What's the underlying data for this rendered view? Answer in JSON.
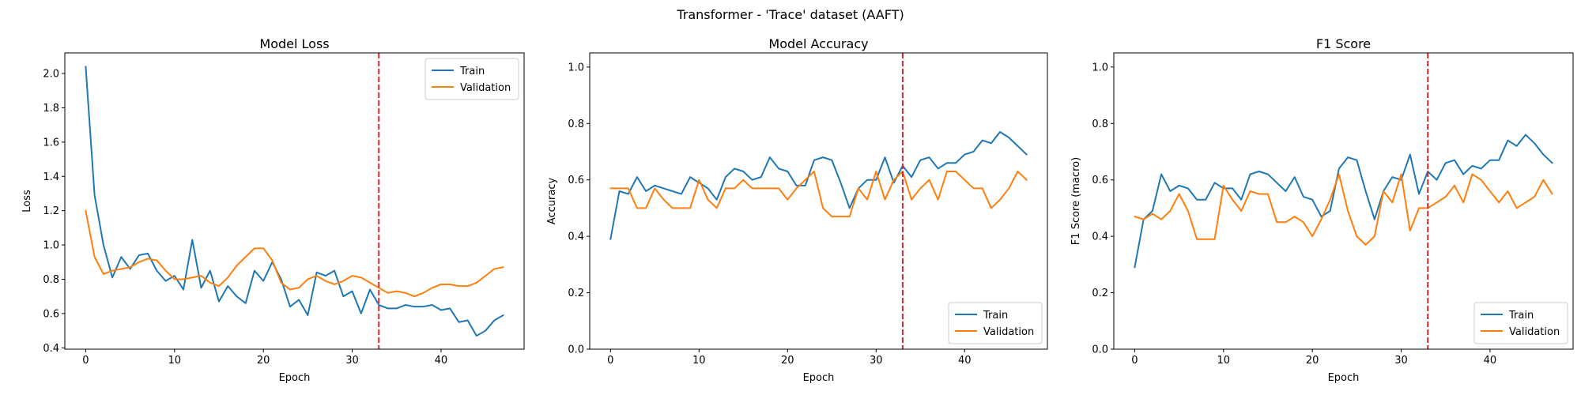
{
  "figure": {
    "suptitle": "Transformer - 'Trace' dataset (AAFT)"
  },
  "colors": {
    "train": "#1f77b4",
    "validation": "#ff7f0e",
    "marker": "#d62728",
    "axis": "#000000",
    "legend_border": "#cccccc"
  },
  "chart_data": [
    {
      "type": "line",
      "title": "Model Loss",
      "xlabel": "Epoch",
      "ylabel": "Loss",
      "xlim": [
        -2.35,
        49.35
      ],
      "ylim": [
        0.392,
        2.12
      ],
      "xticks": [
        0,
        10,
        20,
        30,
        40
      ],
      "yticks": [
        0.4,
        0.6,
        0.8,
        1.0,
        1.2,
        1.4,
        1.6,
        1.8,
        2.0
      ],
      "ytick_decimals": 1,
      "legend_position": "top-right",
      "vline": 33,
      "series": [
        {
          "name": "Train",
          "color": "#1f77b4",
          "values": [
            2.04,
            1.29,
            1.0,
            0.81,
            0.93,
            0.86,
            0.94,
            0.95,
            0.85,
            0.79,
            0.82,
            0.74,
            1.03,
            0.75,
            0.85,
            0.67,
            0.76,
            0.7,
            0.66,
            0.85,
            0.79,
            0.9,
            0.8,
            0.64,
            0.68,
            0.59,
            0.84,
            0.82,
            0.85,
            0.7,
            0.73,
            0.6,
            0.74,
            0.65,
            0.63,
            0.63,
            0.65,
            0.64,
            0.64,
            0.65,
            0.62,
            0.63,
            0.55,
            0.56,
            0.47,
            0.5,
            0.56,
            0.59
          ]
        },
        {
          "name": "Validation",
          "color": "#ff7f0e",
          "values": [
            1.2,
            0.93,
            0.83,
            0.85,
            0.86,
            0.87,
            0.9,
            0.92,
            0.91,
            0.85,
            0.8,
            0.8,
            0.81,
            0.82,
            0.78,
            0.76,
            0.81,
            0.88,
            0.93,
            0.98,
            0.98,
            0.91,
            0.78,
            0.74,
            0.75,
            0.8,
            0.82,
            0.79,
            0.77,
            0.79,
            0.82,
            0.81,
            0.78,
            0.75,
            0.72,
            0.73,
            0.72,
            0.7,
            0.72,
            0.75,
            0.77,
            0.77,
            0.76,
            0.76,
            0.78,
            0.82,
            0.86,
            0.87
          ]
        }
      ]
    },
    {
      "type": "line",
      "title": "Model Accuracy",
      "xlabel": "Epoch",
      "ylabel": "Accuracy",
      "xlim": [
        -2.35,
        49.35
      ],
      "ylim": [
        0,
        1.05
      ],
      "xticks": [
        0,
        10,
        20,
        30,
        40
      ],
      "yticks": [
        0.0,
        0.2,
        0.4,
        0.6,
        0.8,
        1.0
      ],
      "ytick_decimals": 1,
      "legend_position": "bottom-right",
      "vline": 33,
      "series": [
        {
          "name": "Train",
          "color": "#1f77b4",
          "values": [
            0.39,
            0.56,
            0.55,
            0.61,
            0.56,
            0.58,
            0.57,
            0.56,
            0.55,
            0.61,
            0.59,
            0.57,
            0.53,
            0.61,
            0.64,
            0.63,
            0.6,
            0.61,
            0.68,
            0.64,
            0.63,
            0.58,
            0.58,
            0.67,
            0.68,
            0.67,
            0.59,
            0.5,
            0.57,
            0.6,
            0.6,
            0.68,
            0.59,
            0.65,
            0.61,
            0.67,
            0.68,
            0.64,
            0.66,
            0.66,
            0.69,
            0.7,
            0.74,
            0.73,
            0.77,
            0.75,
            0.72,
            0.69
          ]
        },
        {
          "name": "Validation",
          "color": "#ff7f0e",
          "values": [
            0.57,
            0.57,
            0.57,
            0.5,
            0.5,
            0.57,
            0.53,
            0.5,
            0.5,
            0.5,
            0.6,
            0.53,
            0.5,
            0.57,
            0.57,
            0.6,
            0.57,
            0.57,
            0.57,
            0.57,
            0.53,
            0.57,
            0.6,
            0.63,
            0.5,
            0.47,
            0.47,
            0.47,
            0.57,
            0.53,
            0.63,
            0.53,
            0.6,
            0.63,
            0.53,
            0.57,
            0.6,
            0.53,
            0.63,
            0.63,
            0.6,
            0.57,
            0.57,
            0.5,
            0.53,
            0.57,
            0.63,
            0.6
          ]
        }
      ]
    },
    {
      "type": "line",
      "title": "F1 Score",
      "xlabel": "Epoch",
      "ylabel": "F1 Score (macro)",
      "xlim": [
        -2.35,
        49.35
      ],
      "ylim": [
        0,
        1.05
      ],
      "xticks": [
        0,
        10,
        20,
        30,
        40
      ],
      "yticks": [
        0.0,
        0.2,
        0.4,
        0.6,
        0.8,
        1.0
      ],
      "ytick_decimals": 1,
      "legend_position": "bottom-right",
      "vline": 33,
      "series": [
        {
          "name": "Train",
          "color": "#1f77b4",
          "values": [
            0.29,
            0.46,
            0.49,
            0.62,
            0.56,
            0.58,
            0.57,
            0.53,
            0.53,
            0.59,
            0.57,
            0.57,
            0.53,
            0.62,
            0.63,
            0.62,
            0.59,
            0.56,
            0.61,
            0.54,
            0.53,
            0.47,
            0.49,
            0.64,
            0.68,
            0.67,
            0.56,
            0.46,
            0.56,
            0.61,
            0.6,
            0.69,
            0.55,
            0.63,
            0.6,
            0.66,
            0.67,
            0.62,
            0.65,
            0.64,
            0.67,
            0.67,
            0.74,
            0.72,
            0.76,
            0.73,
            0.69,
            0.66
          ]
        },
        {
          "name": "Validation",
          "color": "#ff7f0e",
          "values": [
            0.47,
            0.46,
            0.48,
            0.46,
            0.49,
            0.55,
            0.49,
            0.39,
            0.39,
            0.39,
            0.58,
            0.53,
            0.49,
            0.56,
            0.55,
            0.55,
            0.45,
            0.45,
            0.47,
            0.45,
            0.4,
            0.46,
            0.53,
            0.62,
            0.49,
            0.4,
            0.37,
            0.4,
            0.56,
            0.52,
            0.62,
            0.42,
            0.5,
            0.5,
            0.52,
            0.54,
            0.58,
            0.52,
            0.62,
            0.6,
            0.56,
            0.52,
            0.56,
            0.5,
            0.52,
            0.54,
            0.6,
            0.55
          ]
        }
      ]
    }
  ]
}
